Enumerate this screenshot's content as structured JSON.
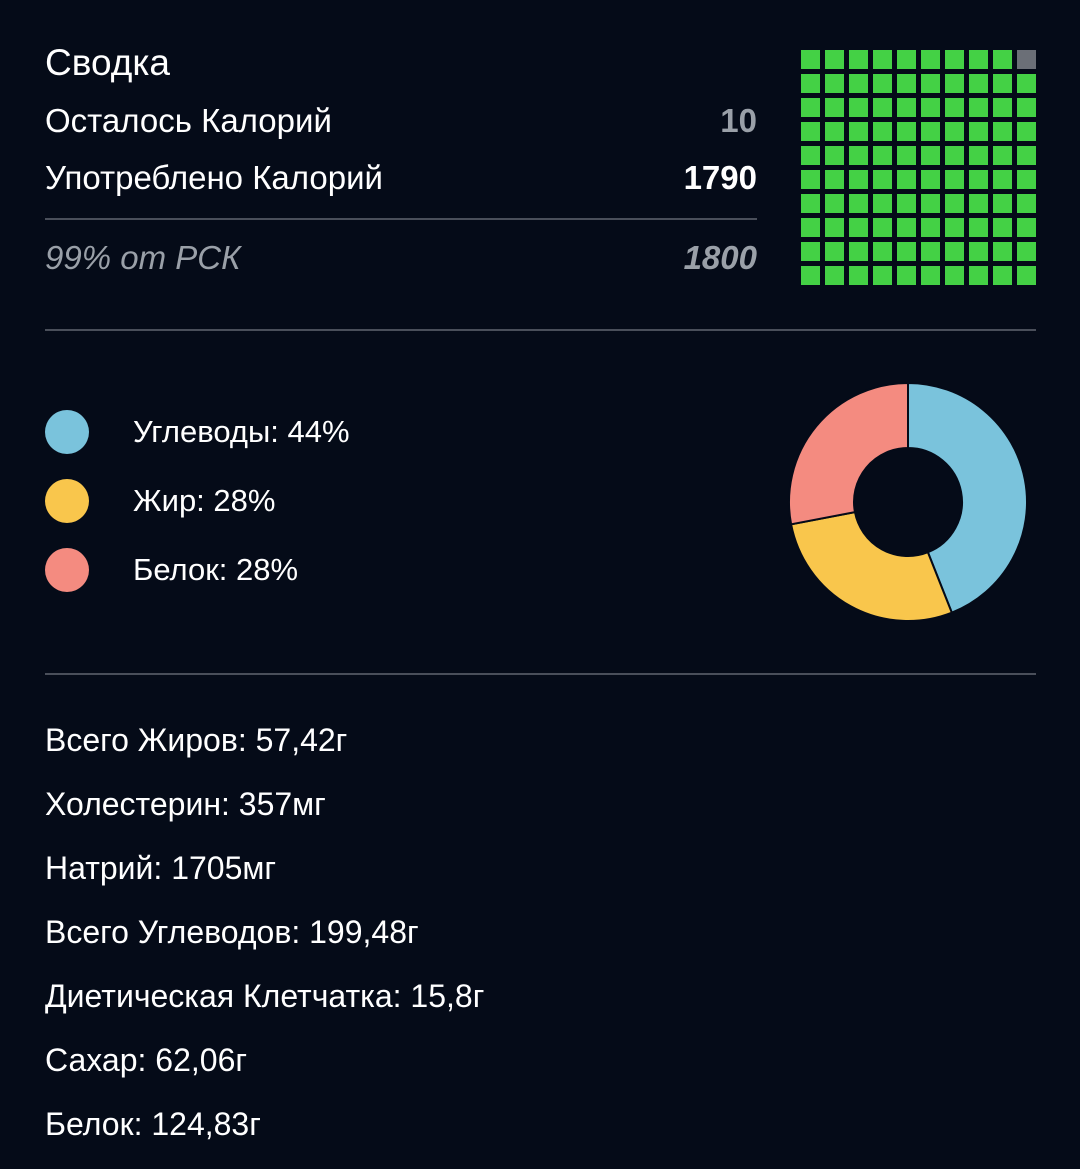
{
  "summary": {
    "title": "Сводка",
    "remaining_label": "Осталось Калорий",
    "remaining_value": "10",
    "consumed_label": "Употреблено Калорий",
    "consumed_value": "1790",
    "rsk_label": "99% от РСК",
    "rsk_value": "1800",
    "grid_filled_fraction": 0.99
  },
  "colors": {
    "background": "#050b18",
    "grid_filled": "#44d145",
    "grid_empty": "#6b6f77",
    "carbs": "#7ac3dc",
    "fat": "#f9c64c",
    "protein": "#f48b80"
  },
  "macros": {
    "items": [
      {
        "label": "Углеводы: 44%",
        "color": "#7ac3dc"
      },
      {
        "label": "Жир: 28%",
        "color": "#f9c64c"
      },
      {
        "label": "Белок: 28%",
        "color": "#f48b80"
      }
    ]
  },
  "chart_data": {
    "type": "pie",
    "donut": true,
    "categories": [
      "Углеводы",
      "Жир",
      "Белок"
    ],
    "values": [
      44,
      28,
      28
    ],
    "colors": [
      "#7ac3dc",
      "#f9c64c",
      "#f48b80"
    ]
  },
  "nutrients": [
    "Всего Жиров: 57,42г",
    "Холестерин: 357мг",
    "Натрий: 1705мг",
    "Всего Углеводов: 199,48г",
    "Диетическая Клетчатка: 15,8г",
    "Сахар: 62,06г",
    "Белок: 124,83г"
  ]
}
